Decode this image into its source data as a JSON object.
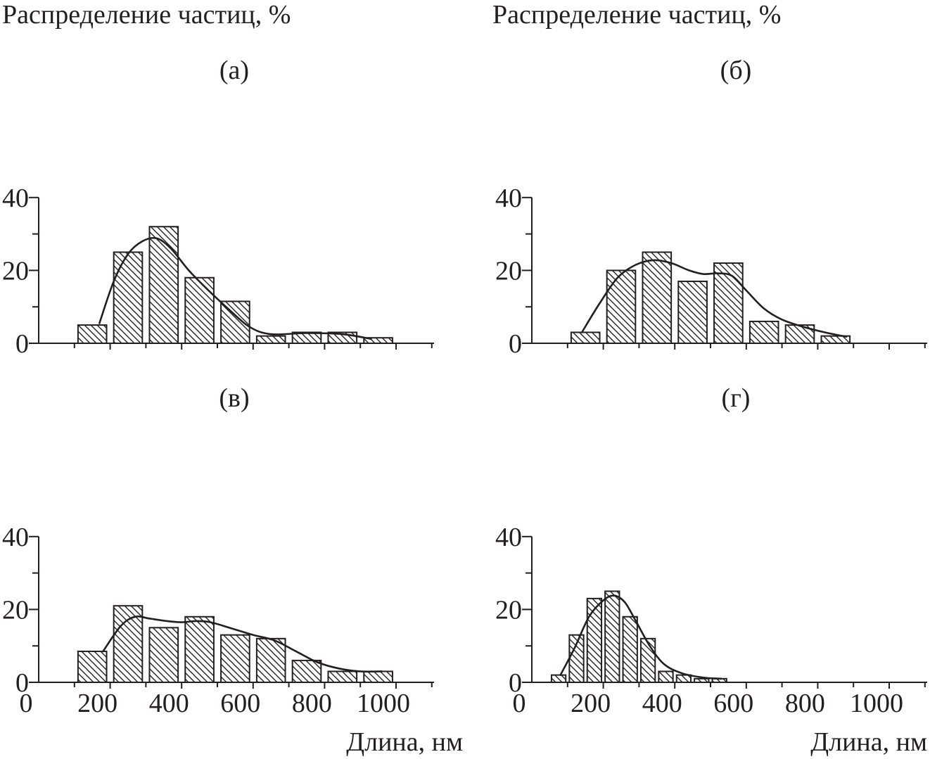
{
  "chart_data": [
    {
      "id": "a",
      "type": "bar",
      "panel_label": "(а)",
      "ylabel": "Распределение частиц, %",
      "xlabel": "",
      "yticks": [
        0,
        20,
        40
      ],
      "xticks": [],
      "xlim": [
        0,
        1100
      ],
      "ylim": [
        0,
        40
      ],
      "bin_width": 80,
      "bars": [
        {
          "x": 150,
          "value": 5
        },
        {
          "x": 250,
          "value": 25
        },
        {
          "x": 350,
          "value": 32
        },
        {
          "x": 450,
          "value": 18
        },
        {
          "x": 550,
          "value": 11.5
        },
        {
          "x": 650,
          "value": 2
        },
        {
          "x": 750,
          "value": 3
        },
        {
          "x": 850,
          "value": 3
        },
        {
          "x": 950,
          "value": 1.5
        }
      ],
      "fit_curve": [
        [
          170,
          5.5
        ],
        [
          210,
          17
        ],
        [
          250,
          24.5
        ],
        [
          290,
          28
        ],
        [
          330,
          28.8
        ],
        [
          370,
          26
        ],
        [
          420,
          20
        ],
        [
          470,
          15
        ],
        [
          530,
          9.5
        ],
        [
          590,
          4.5
        ],
        [
          650,
          2.5
        ],
        [
          750,
          2.8
        ],
        [
          850,
          2.5
        ],
        [
          930,
          1.2
        ]
      ]
    },
    {
      "id": "b",
      "type": "bar",
      "panel_label": "(б)",
      "ylabel": "Распределение частиц, %",
      "xlabel": "",
      "yticks": [
        0,
        20,
        40
      ],
      "xticks": [],
      "xlim": [
        0,
        1100
      ],
      "ylim": [
        0,
        40
      ],
      "bin_width": 80,
      "bars": [
        {
          "x": 150,
          "value": 3
        },
        {
          "x": 250,
          "value": 20
        },
        {
          "x": 350,
          "value": 25
        },
        {
          "x": 450,
          "value": 17
        },
        {
          "x": 550,
          "value": 22
        },
        {
          "x": 650,
          "value": 6
        },
        {
          "x": 750,
          "value": 5
        },
        {
          "x": 850,
          "value": 2
        }
      ],
      "fit_curve": [
        [
          140,
          3
        ],
        [
          190,
          11
        ],
        [
          240,
          18
        ],
        [
          290,
          21.5
        ],
        [
          340,
          22.8
        ],
        [
          390,
          22
        ],
        [
          440,
          20
        ],
        [
          480,
          19
        ],
        [
          520,
          19.2
        ],
        [
          560,
          18.5
        ],
        [
          600,
          14.5
        ],
        [
          650,
          9.5
        ],
        [
          700,
          6.5
        ],
        [
          760,
          4.5
        ],
        [
          820,
          3
        ],
        [
          880,
          1.8
        ]
      ]
    },
    {
      "id": "v",
      "type": "bar",
      "panel_label": "(в)",
      "ylabel": "",
      "xlabel": "",
      "yticks": [
        0,
        20,
        40
      ],
      "xticks": [
        0,
        200,
        400,
        600,
        800,
        1000
      ],
      "xlim": [
        0,
        1100
      ],
      "ylim": [
        0,
        40
      ],
      "bin_width": 80,
      "bars": [
        {
          "x": 150,
          "value": 8.5
        },
        {
          "x": 250,
          "value": 21
        },
        {
          "x": 350,
          "value": 15
        },
        {
          "x": 450,
          "value": 18
        },
        {
          "x": 550,
          "value": 13
        },
        {
          "x": 650,
          "value": 12
        },
        {
          "x": 750,
          "value": 6
        },
        {
          "x": 850,
          "value": 3
        },
        {
          "x": 950,
          "value": 3
        }
      ],
      "fit_curve": [
        [
          180,
          8.5
        ],
        [
          230,
          15.5
        ],
        [
          270,
          18
        ],
        [
          310,
          17.5
        ],
        [
          360,
          16.8
        ],
        [
          400,
          16.5
        ],
        [
          440,
          16.8
        ],
        [
          480,
          16.5
        ],
        [
          540,
          14.8
        ],
        [
          600,
          13
        ],
        [
          660,
          11.5
        ],
        [
          720,
          8.5
        ],
        [
          780,
          5.5
        ],
        [
          840,
          3.8
        ],
        [
          900,
          3
        ],
        [
          960,
          3
        ]
      ]
    },
    {
      "id": "g",
      "type": "bar",
      "panel_label": "(г)",
      "ylabel": "",
      "xlabel": "Длина, нм",
      "yticks": [
        0,
        20,
        40
      ],
      "xticks": [
        0,
        200,
        400,
        600,
        800,
        1000
      ],
      "xlim": [
        0,
        1100
      ],
      "ylim": [
        0,
        40
      ],
      "bin_width": 40,
      "bars": [
        {
          "x": 75,
          "value": 2
        },
        {
          "x": 125,
          "value": 13
        },
        {
          "x": 175,
          "value": 23
        },
        {
          "x": 225,
          "value": 25
        },
        {
          "x": 275,
          "value": 18
        },
        {
          "x": 325,
          "value": 12
        },
        {
          "x": 375,
          "value": 3
        },
        {
          "x": 425,
          "value": 2
        },
        {
          "x": 475,
          "value": 1
        },
        {
          "x": 525,
          "value": 1
        }
      ],
      "fit_curve": [
        [
          80,
          2
        ],
        [
          120,
          9.5
        ],
        [
          160,
          18
        ],
        [
          200,
          22.5
        ],
        [
          230,
          23.8
        ],
        [
          260,
          22
        ],
        [
          290,
          17
        ],
        [
          330,
          10
        ],
        [
          370,
          5
        ],
        [
          420,
          2.5
        ],
        [
          480,
          1.3
        ],
        [
          530,
          1
        ]
      ]
    }
  ]
}
